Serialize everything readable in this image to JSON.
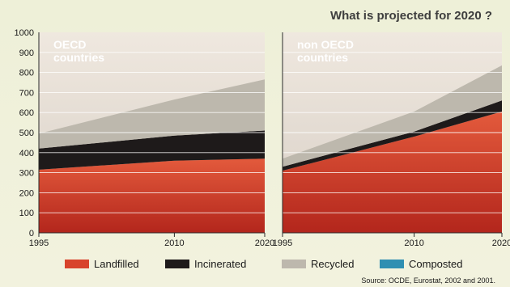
{
  "chart_data": {
    "type": "area",
    "title": "What is projected for 2020 ?",
    "source": "Source: OCDE, Eurostat, 2002 and 2001.",
    "ylim": [
      0,
      1000
    ],
    "yticks": [
      "0",
      "100",
      "200",
      "300",
      "400",
      "500",
      "600",
      "700",
      "800",
      "900",
      "1000"
    ],
    "xlim": [
      1995,
      2020
    ],
    "xticks": [
      "1995",
      "2010",
      "2020"
    ],
    "stacked": true,
    "legend": {
      "placement": "bottom",
      "entries": [
        {
          "name": "Landfilled",
          "color": "#d8432c"
        },
        {
          "name": "Incinerated",
          "color": "#1e1a1a"
        },
        {
          "name": "Recycled",
          "color": "#bdb8ad"
        },
        {
          "name": "Composted",
          "color": "#2f8fb2"
        }
      ]
    },
    "panels": [
      {
        "label_lines": [
          "OECD",
          "countries"
        ],
        "x": [
          1995,
          2010,
          2020
        ],
        "series": [
          {
            "name": "Landfilled",
            "values": [
              315,
              360,
              370
            ]
          },
          {
            "name": "Incinerated",
            "values": [
              105,
              125,
              140
            ]
          },
          {
            "name": "Recycled",
            "values": [
              75,
              180,
              255
            ]
          }
        ]
      },
      {
        "label_lines": [
          "non OECD",
          "countries"
        ],
        "x": [
          1995,
          2010,
          2020
        ],
        "series": [
          {
            "name": "Landfilled",
            "values": [
              310,
              480,
              605
            ]
          },
          {
            "name": "Incinerated",
            "values": [
              20,
              25,
              55
            ]
          },
          {
            "name": "Recycled",
            "values": [
              40,
              100,
              175
            ]
          }
        ]
      }
    ]
  }
}
